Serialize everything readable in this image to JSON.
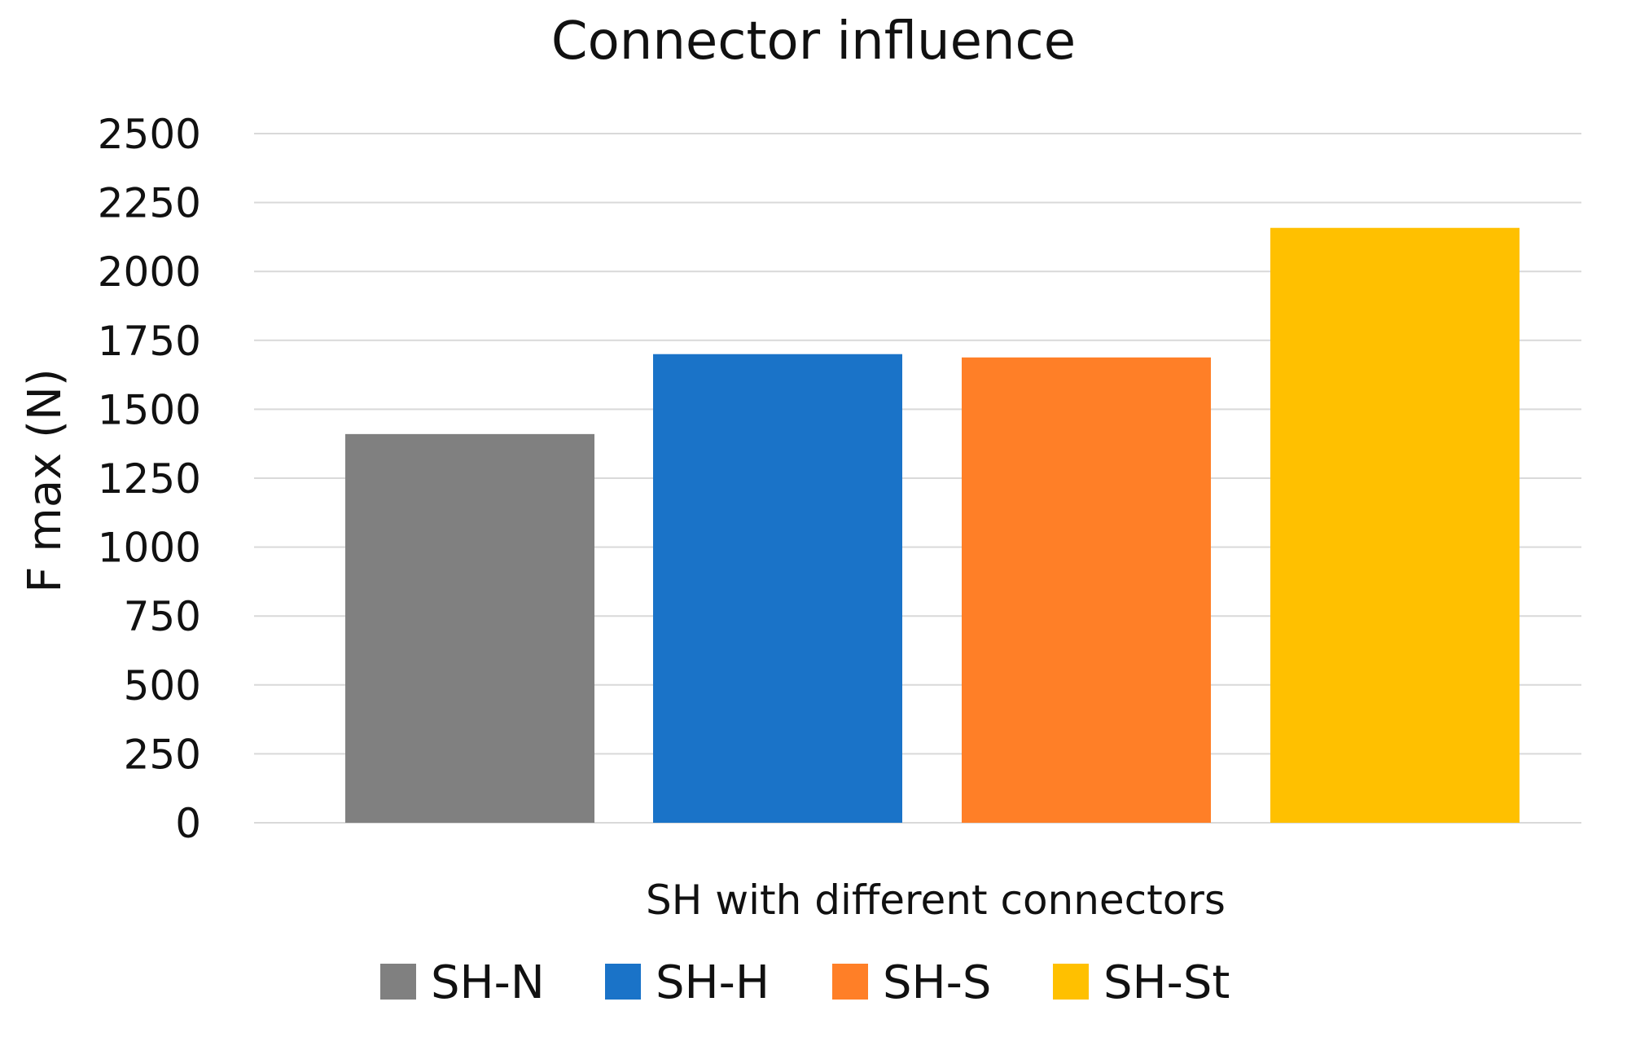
{
  "chart_data": {
    "type": "bar",
    "title": "Connector influence",
    "xlabel": "SH with different connectors",
    "ylabel": "F max (N)",
    "ylim": [
      0,
      2500
    ],
    "yticks": [
      0,
      250,
      500,
      750,
      1000,
      1250,
      1500,
      1750,
      2000,
      2250,
      2500
    ],
    "grid": true,
    "legend_position": "bottom",
    "series": [
      {
        "name": "SH-N",
        "value": 1410,
        "color": "#808080"
      },
      {
        "name": "SH-H",
        "value": 1700,
        "color": "#1a73c8"
      },
      {
        "name": "SH-S",
        "value": 1688,
        "color": "#ff7f27"
      },
      {
        "name": "SH-St",
        "value": 2158,
        "color": "#ffc000"
      }
    ]
  }
}
